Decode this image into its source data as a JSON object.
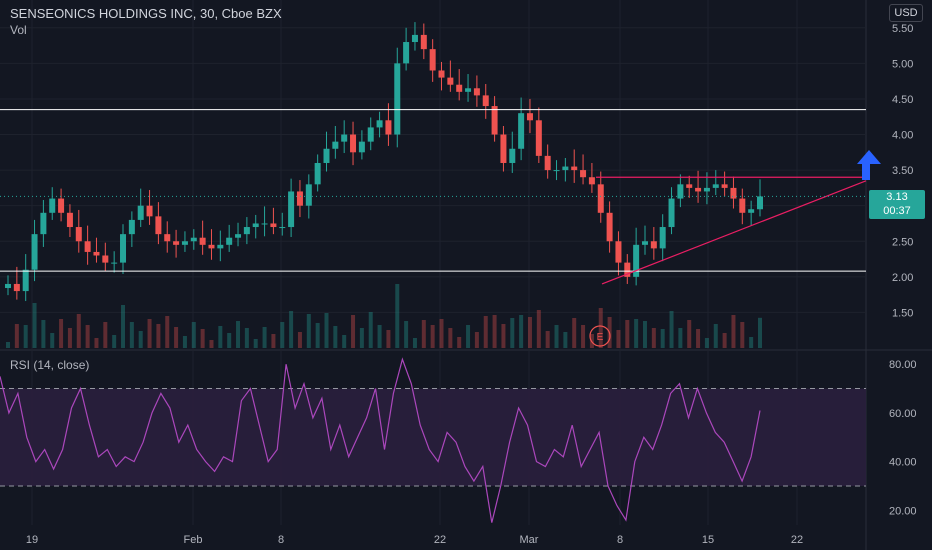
{
  "header": {
    "symbol_line": "SENSEONICS HOLDINGS INC, 30, Cboe BZX",
    "volume_label": "Vol",
    "currency": "USD",
    "last_price": "3.13",
    "countdown": "00:37",
    "rsi_label": "RSI (14, close)"
  },
  "colors": {
    "background": "#131722",
    "up": "#26a69a",
    "down": "#ef5350",
    "rsi_line": "#ab47bc",
    "rsi_band": "#2a1f3d",
    "trendline": "#e91e63",
    "level_line": "#ffffff",
    "arrow": "#2962ff"
  },
  "chart_data": [
    {
      "type": "candlestick",
      "title": "SENSEONICS HOLDINGS INC, 30, Cboe BZX",
      "x_ticks": [
        "19",
        "Feb",
        "8",
        "22",
        "Mar",
        "8",
        "15",
        "22"
      ],
      "y_ticks": [
        "1.50",
        "2.00",
        "2.50",
        "3.00",
        "3.50",
        "4.00",
        "4.50",
        "5.00",
        "5.50"
      ],
      "ylim": [
        1.0,
        5.75
      ],
      "current_price": 3.13,
      "earnings_marker": "E",
      "series": [
        {
          "values_close_approx": [
            1.9,
            1.8,
            2.1,
            2.6,
            2.9,
            3.1,
            2.9,
            2.7,
            2.5,
            2.35,
            2.3,
            2.2,
            2.2,
            2.6,
            2.8,
            3.0,
            2.85,
            2.6,
            2.5,
            2.45,
            2.5,
            2.55,
            2.45,
            2.4,
            2.45,
            2.55,
            2.6,
            2.7,
            2.75,
            2.75,
            2.7,
            2.7,
            3.2,
            3.0,
            3.3,
            3.6,
            3.8,
            3.9,
            4.0,
            3.75,
            3.9,
            4.1,
            4.2,
            4.0,
            5.0,
            5.3,
            5.4,
            5.2,
            4.9,
            4.8,
            4.7,
            4.6,
            4.65,
            4.55,
            4.4,
            4.0,
            3.6,
            3.8,
            4.3,
            4.2,
            3.7,
            3.5,
            3.5,
            3.55,
            3.5,
            3.4,
            3.3,
            2.9,
            2.5,
            2.2,
            2.0,
            2.45,
            2.5,
            2.4,
            2.7,
            3.1,
            3.3,
            3.25,
            3.2,
            3.25,
            3.3,
            3.25,
            3.1,
            2.9,
            2.95,
            3.13
          ]
        }
      ],
      "horizontal_levels": [
        4.35,
        2.08
      ],
      "resistance_line": 3.4,
      "rising_support_line": {
        "from": [
          68,
          1.9
        ],
        "to": [
          100,
          3.35
        ]
      },
      "annotation_arrow": "up"
    },
    {
      "type": "line",
      "title": "RSI (14, close)",
      "y_ticks": [
        "20.00",
        "40.00",
        "60.00",
        "80.00"
      ],
      "ylim": [
        14,
        85
      ],
      "bands": [
        30,
        70
      ],
      "series": [
        {
          "name": "RSI (14, close)",
          "values": [
            75,
            60,
            68,
            50,
            40,
            45,
            37,
            45,
            62,
            70,
            55,
            42,
            45,
            38,
            42,
            40,
            48,
            60,
            68,
            62,
            48,
            55,
            45,
            40,
            36,
            42,
            40,
            65,
            70,
            55,
            40,
            45,
            80,
            62,
            72,
            58,
            66,
            45,
            55,
            42,
            50,
            58,
            70,
            45,
            68,
            82,
            72,
            55,
            45,
            40,
            52,
            48,
            38,
            32,
            38,
            15,
            30,
            48,
            62,
            55,
            40,
            38,
            45,
            42,
            55,
            38,
            45,
            52,
            30,
            22,
            16,
            40,
            50,
            45,
            55,
            68,
            72,
            58,
            70,
            60,
            52,
            48,
            40,
            32,
            42,
            61
          ]
        }
      ]
    }
  ]
}
